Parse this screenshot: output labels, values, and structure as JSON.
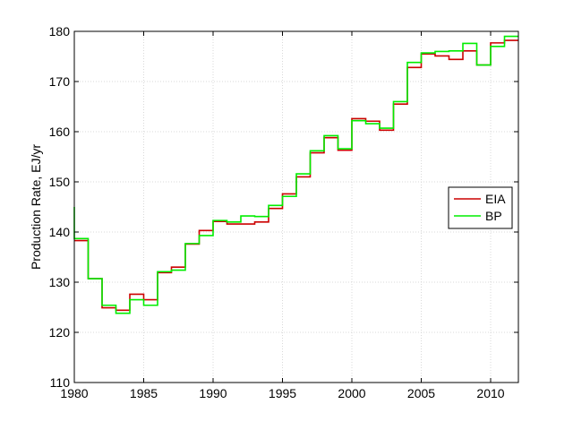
{
  "chart_data": {
    "type": "line",
    "step": true,
    "xlabel": "",
    "ylabel": "Production Rate, EJ/yr",
    "xlim": [
      1980,
      2012
    ],
    "ylim": [
      110,
      180
    ],
    "xticks": [
      1980,
      1985,
      1990,
      1995,
      2000,
      2005,
      2010
    ],
    "yticks": [
      110,
      120,
      130,
      140,
      150,
      160,
      170,
      180
    ],
    "grid": true,
    "legend_position": "right",
    "series": [
      {
        "name": "EIA",
        "color": "#cc0000",
        "x": [
          1980,
          1981,
          1982,
          1983,
          1984,
          1985,
          1986,
          1987,
          1988,
          1989,
          1990,
          1991,
          1992,
          1993,
          1994,
          1995,
          1996,
          1997,
          1998,
          1999,
          2000,
          2001,
          2002,
          2003,
          2004,
          2005,
          2006,
          2007,
          2008,
          2009,
          2010,
          2011,
          2012
        ],
        "values": [
          138.3,
          130.7,
          124.9,
          124.4,
          127.6,
          126.5,
          131.9,
          133.0,
          137.6,
          140.3,
          142.1,
          141.6,
          141.6,
          142.0,
          144.7,
          147.6,
          151.0,
          155.8,
          158.8,
          156.3,
          162.6,
          162.1,
          160.3,
          165.5,
          172.8,
          175.5,
          175.1,
          174.4,
          176.1,
          173.3,
          177.7,
          178.2,
          178.2
        ]
      },
      {
        "name": "BP",
        "color": "#00ee00",
        "x": [
          1980,
          1981,
          1982,
          1983,
          1984,
          1985,
          1986,
          1987,
          1988,
          1989,
          1990,
          1991,
          1992,
          1993,
          1994,
          1995,
          1996,
          1997,
          1998,
          1999,
          2000,
          2001,
          2002,
          2003,
          2004,
          2005,
          2006,
          2007,
          2008,
          2009,
          2010,
          2011,
          2012
        ],
        "values": [
          138.7,
          130.7,
          125.4,
          123.8,
          126.5,
          125.4,
          132.1,
          132.4,
          137.7,
          139.3,
          142.3,
          142.0,
          143.2,
          143.1,
          145.3,
          147.1,
          151.6,
          156.2,
          159.2,
          156.6,
          162.2,
          161.6,
          160.7,
          166.0,
          173.8,
          175.7,
          176.0,
          176.1,
          177.6,
          173.3,
          177.0,
          179.0,
          179.0
        ]
      }
    ],
    "initial_green_value": 145
  }
}
